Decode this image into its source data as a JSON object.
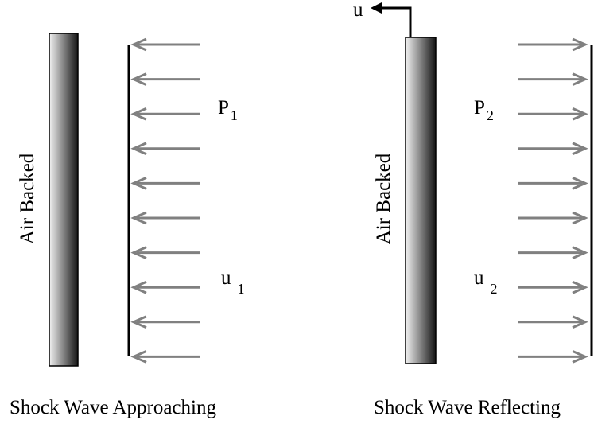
{
  "panels": [
    {
      "id": "approaching",
      "plate_label": "Air Backed",
      "pressure_symbol": "P",
      "pressure_subscript": "1",
      "velocity_symbol": "u",
      "velocity_subscript": "1",
      "arrow_direction": "left",
      "caption": "Shock Wave Approaching"
    },
    {
      "id": "reflecting",
      "plate_label": "Air Backed",
      "pressure_symbol": "P",
      "pressure_subscript": "2",
      "velocity_symbol": "u",
      "velocity_subscript": "2",
      "arrow_direction": "right",
      "plate_velocity_label": "u",
      "caption": "Shock Wave Reflecting"
    }
  ],
  "colors": {
    "arrow": "#808080",
    "line": "#000000",
    "plate_dark": "#141414",
    "plate_light": "#f2f2f2"
  }
}
